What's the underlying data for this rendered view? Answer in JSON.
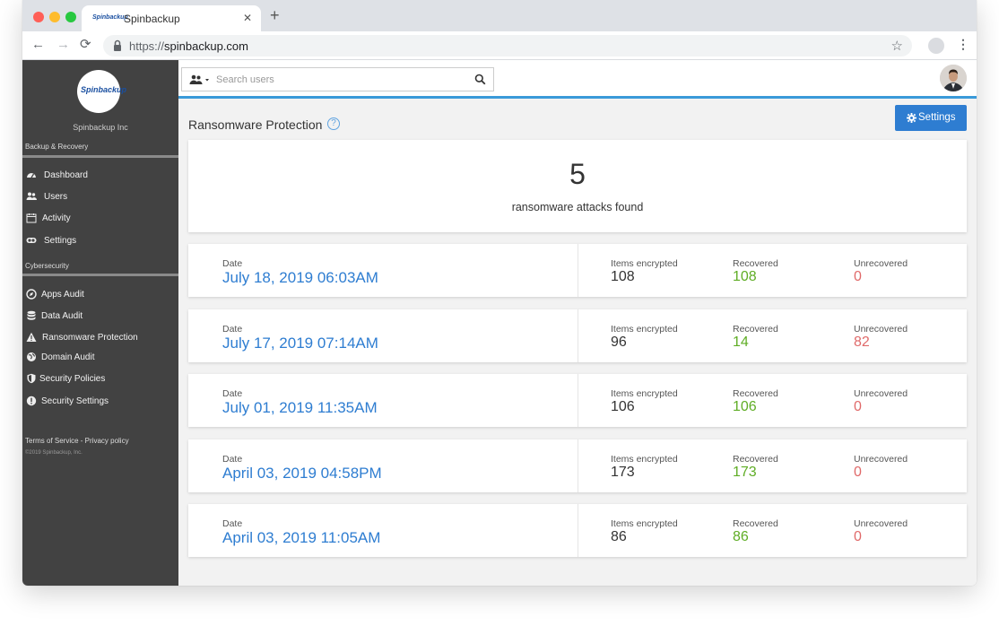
{
  "browser": {
    "tab_title": "Spinbackup",
    "favicon_text": "Spinbackup",
    "url_scheme": "https://",
    "url_host": "spinbackup.com"
  },
  "sidebar": {
    "logo_text": "Spinbackup",
    "company": "Spinbackup Inc",
    "section_backup": "Backup & Recovery",
    "backup_items": [
      {
        "label": "Dashboard",
        "icon": "dashboard-icon"
      },
      {
        "label": "Users",
        "icon": "users-icon"
      },
      {
        "label": "Activity",
        "icon": "calendar-icon"
      },
      {
        "label": "Settings",
        "icon": "settings-icon"
      }
    ],
    "section_cyber": "Cybersecurity",
    "cyber_items": [
      {
        "label": "Apps Audit",
        "icon": "apps-audit-icon"
      },
      {
        "label": "Data Audit",
        "icon": "database-icon"
      },
      {
        "label": "Ransomware Protection",
        "icon": "warning-icon"
      },
      {
        "label": "Domain Audit",
        "icon": "globe-icon"
      },
      {
        "label": "Security Policies",
        "icon": "shield-icon"
      },
      {
        "label": "Security Settings",
        "icon": "alert-circle-icon"
      }
    ],
    "footer_links": "Terms of Service - Privacy policy",
    "copyright": "©2019 Spinbackup, Inc."
  },
  "header": {
    "search_placeholder": "Search users"
  },
  "main": {
    "title": "Ransomware Protection",
    "help_glyph": "?",
    "settings_label": "Settings",
    "summary_count": "5",
    "summary_label": "ransomware attacks found",
    "col_date": "Date",
    "col_encrypted": "Items encrypted",
    "col_recovered": "Recovered",
    "col_unrecovered": "Unrecovered",
    "attacks": [
      {
        "date": "July 18, 2019 06:03AM",
        "encrypted": "108",
        "recovered": "108",
        "unrecovered": "0"
      },
      {
        "date": "July 17, 2019 07:14AM",
        "encrypted": "96",
        "recovered": "14",
        "unrecovered": "82"
      },
      {
        "date": "July 01, 2019 11:35AM",
        "encrypted": "106",
        "recovered": "106",
        "unrecovered": "0"
      },
      {
        "date": "April 03, 2019 04:58PM",
        "encrypted": "173",
        "recovered": "173",
        "unrecovered": "0"
      },
      {
        "date": "April 03, 2019 11:05AM",
        "encrypted": "86",
        "recovered": "86",
        "unrecovered": "0"
      }
    ]
  },
  "colors": {
    "accent": "#2e7dd1",
    "recovered": "#5fad25",
    "unrecovered": "#e06a6a",
    "sidebar": "#424242",
    "topbar_line": "#3a9ad9"
  }
}
